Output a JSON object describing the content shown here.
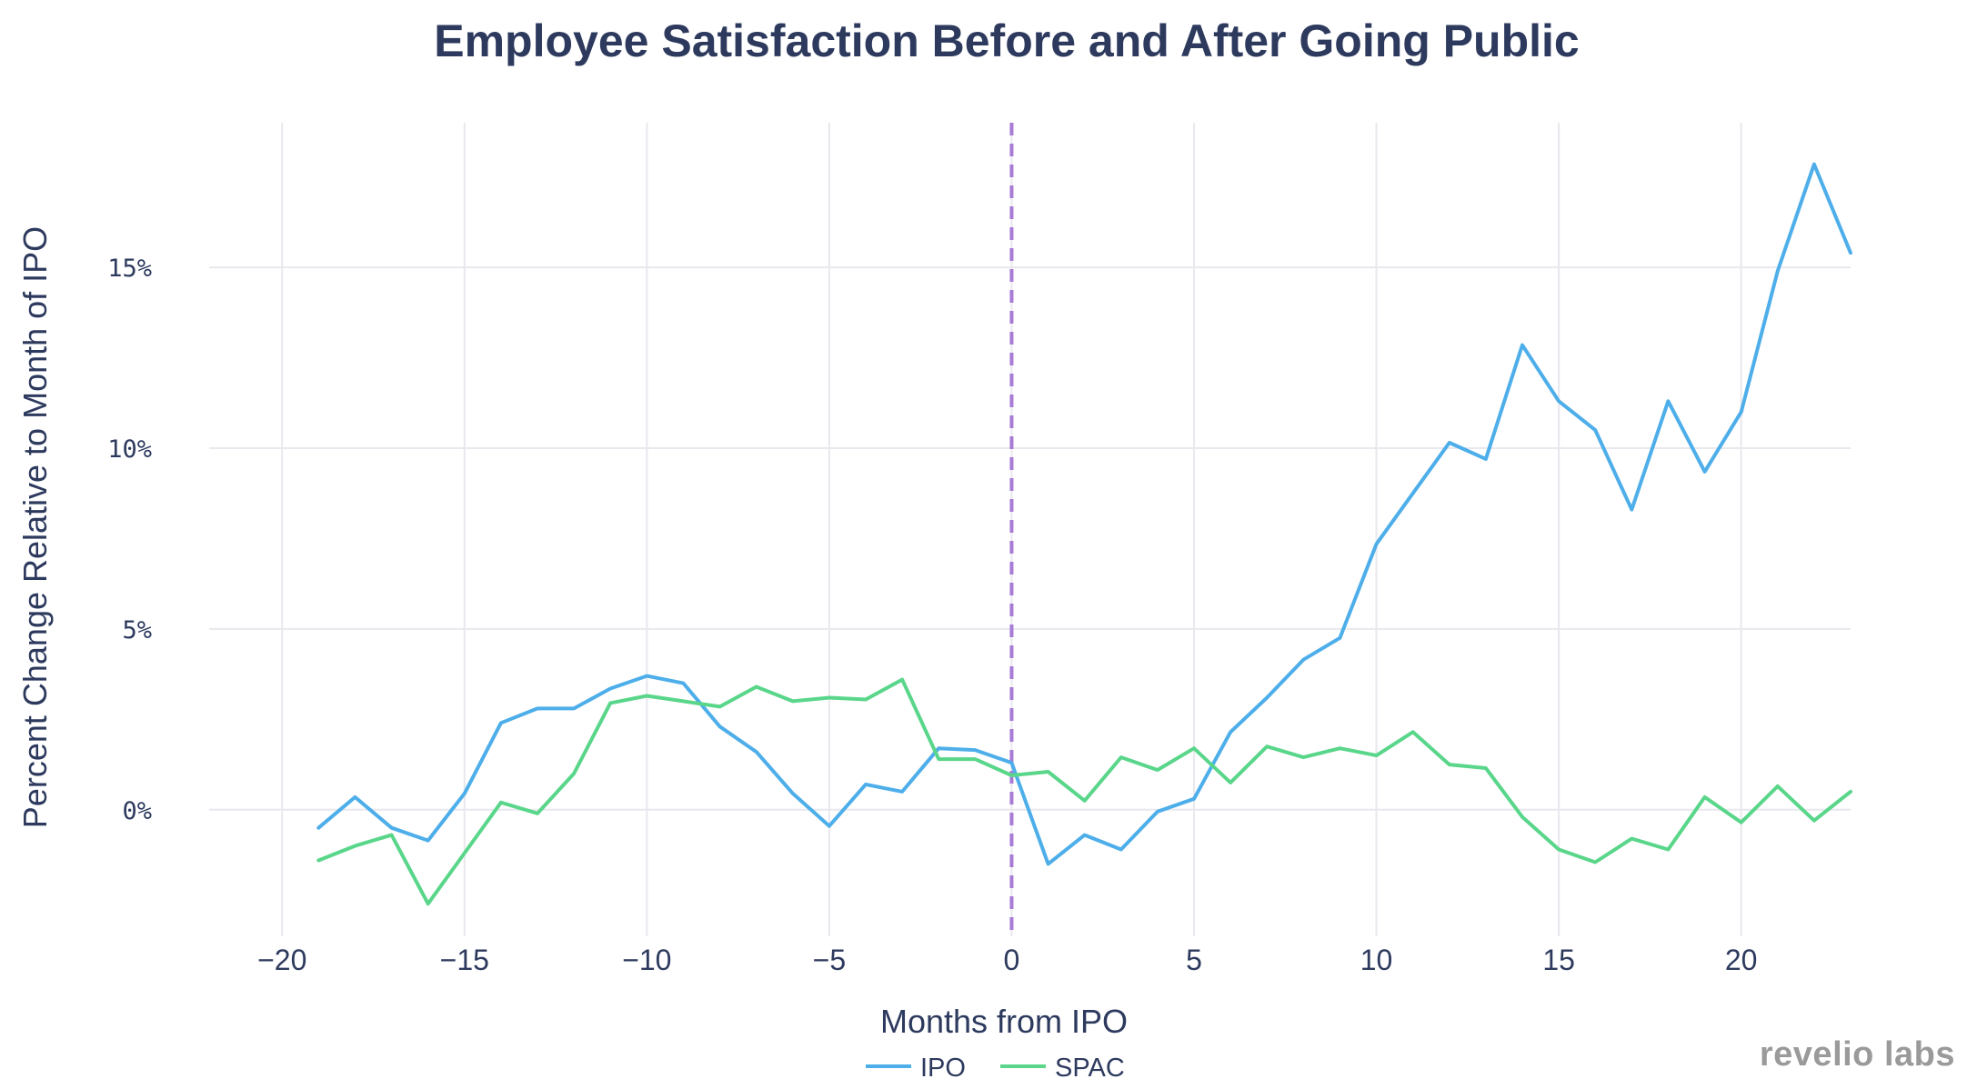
{
  "chart_data": {
    "type": "line",
    "title": "Employee Satisfaction Before and After Going Public",
    "xlabel": "Months from IPO",
    "ylabel": "Percent Change Relative to Month of IPO",
    "xlim": [
      -22,
      23
    ],
    "ylim": [
      -3.5,
      19
    ],
    "x_ticks": [
      -20,
      -15,
      -10,
      -5,
      0,
      5,
      10,
      15,
      20
    ],
    "x_tick_labels": [
      "−20",
      "−15",
      "−10",
      "−5",
      "0",
      "5",
      "10",
      "15",
      "20"
    ],
    "y_ticks": [
      0,
      5,
      10,
      15
    ],
    "y_tick_labels": [
      "0%",
      "5%",
      "10%",
      "15%"
    ],
    "reference_line": {
      "x": 0,
      "color": "#a77bd6",
      "style": "dashed"
    },
    "grid": true,
    "legend_position": "bottom-center",
    "x": [
      -19,
      -18,
      -17,
      -16,
      -15,
      -14,
      -13,
      -12,
      -11,
      -10,
      -9,
      -8,
      -7,
      -6,
      -5,
      -4,
      -3,
      -2,
      -1,
      0,
      1,
      2,
      3,
      4,
      5,
      6,
      7,
      8,
      9,
      10,
      11,
      12,
      13,
      14,
      15,
      16,
      17,
      18,
      19,
      20,
      21,
      22,
      23
    ],
    "series": [
      {
        "name": "IPO",
        "color": "#4daeea",
        "values": [
          -0.5,
          0.35,
          -0.5,
          -0.85,
          0.45,
          2.4,
          2.8,
          2.8,
          3.35,
          3.7,
          3.5,
          2.3,
          1.6,
          0.45,
          -0.45,
          0.7,
          0.5,
          1.7,
          1.65,
          1.3,
          -1.5,
          -0.7,
          -1.1,
          -0.05,
          0.3,
          2.15,
          3.1,
          4.15,
          4.75,
          7.35,
          8.75,
          10.15,
          9.7,
          12.85,
          11.3,
          10.5,
          8.3,
          11.3,
          9.35,
          11.0,
          14.9,
          17.85,
          15.4
        ]
      },
      {
        "name": "SPAC",
        "color": "#59d68a",
        "values": [
          -1.4,
          -1.0,
          -0.7,
          -2.6,
          -1.2,
          0.2,
          -0.1,
          1.0,
          2.95,
          3.15,
          3.0,
          2.85,
          3.4,
          3.0,
          3.1,
          3.05,
          3.6,
          1.4,
          1.4,
          0.95,
          1.05,
          0.25,
          1.45,
          1.1,
          1.7,
          0.75,
          1.75,
          1.45,
          1.7,
          1.5,
          2.15,
          1.25,
          1.15,
          -0.2,
          -1.1,
          -1.45,
          -0.8,
          -1.1,
          0.35,
          -0.35,
          0.65,
          -0.3,
          0.5
        ]
      }
    ]
  },
  "watermark": "revelio labs"
}
